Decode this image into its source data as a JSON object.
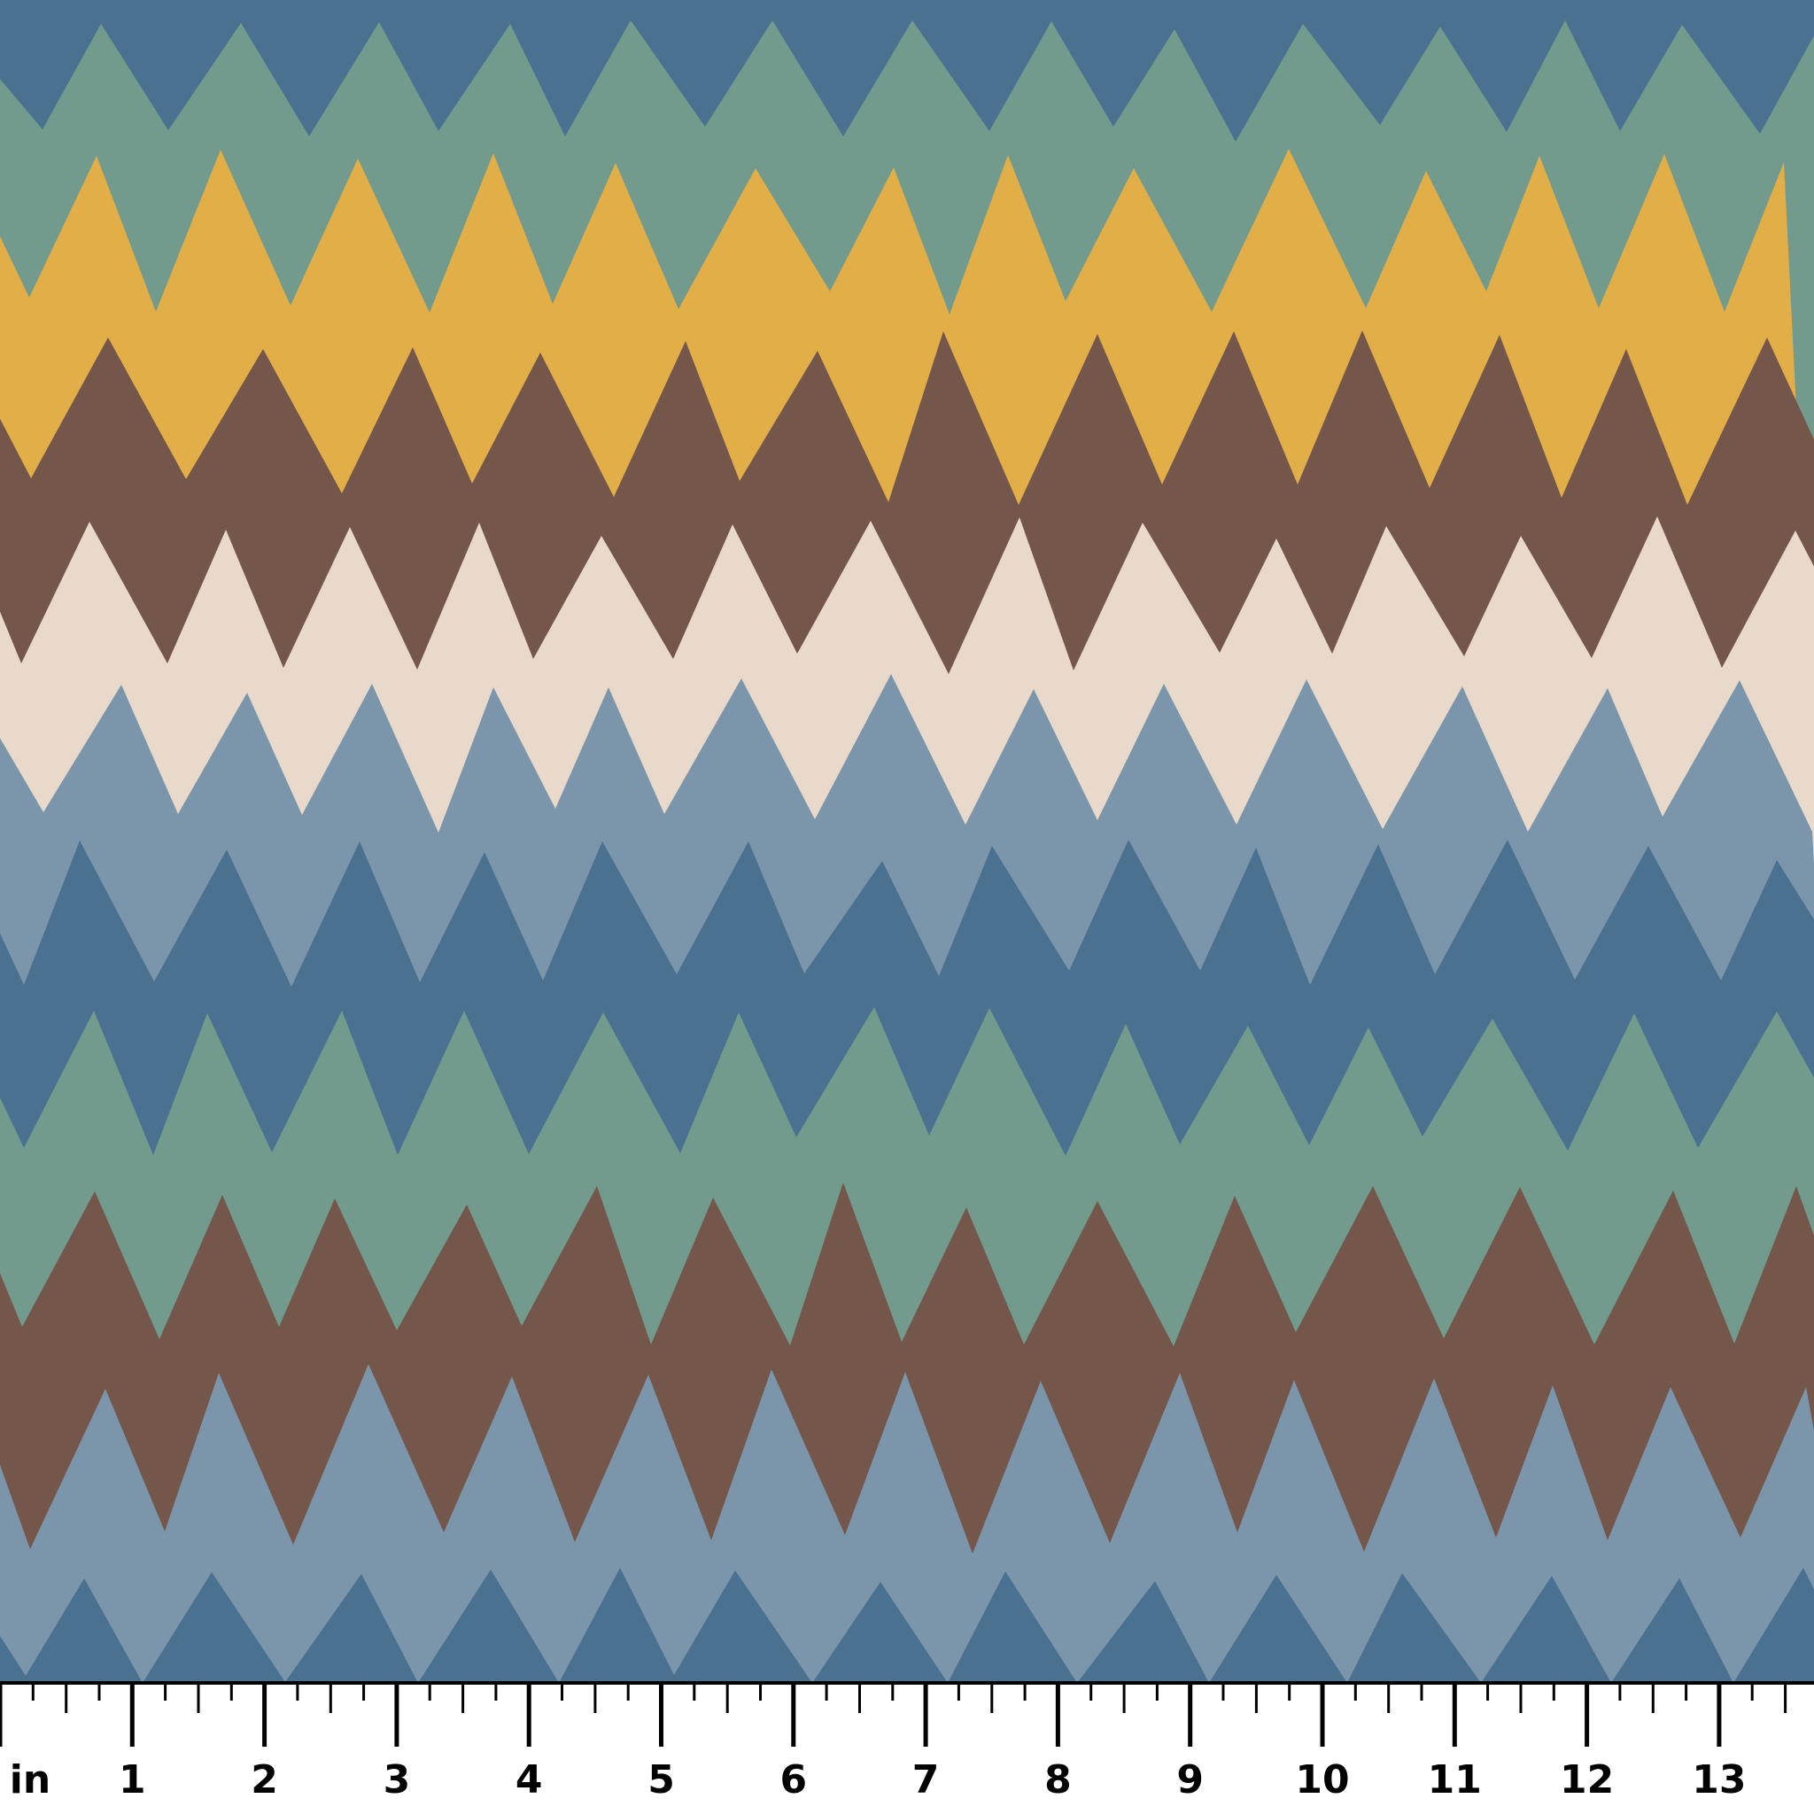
{
  "swatch": {
    "colors": {
      "dark_blue": "#4a7190",
      "sage": "#729b8e",
      "mustard": "#e2ae47",
      "brown": "#74564b",
      "cream": "#e8d9cb",
      "light_blue": "#7b96aa"
    },
    "band_order": [
      "dark_blue",
      "sage",
      "mustard",
      "brown",
      "cream",
      "light_blue",
      "dark_blue",
      "sage",
      "brown",
      "light_blue",
      "dark_blue"
    ]
  },
  "ruler": {
    "unit_label": "in",
    "numbers": [
      "1",
      "2",
      "3",
      "4",
      "5",
      "6",
      "7",
      "8",
      "9",
      "10",
      "11",
      "12",
      "13"
    ],
    "ticks_per_inch": 4
  }
}
